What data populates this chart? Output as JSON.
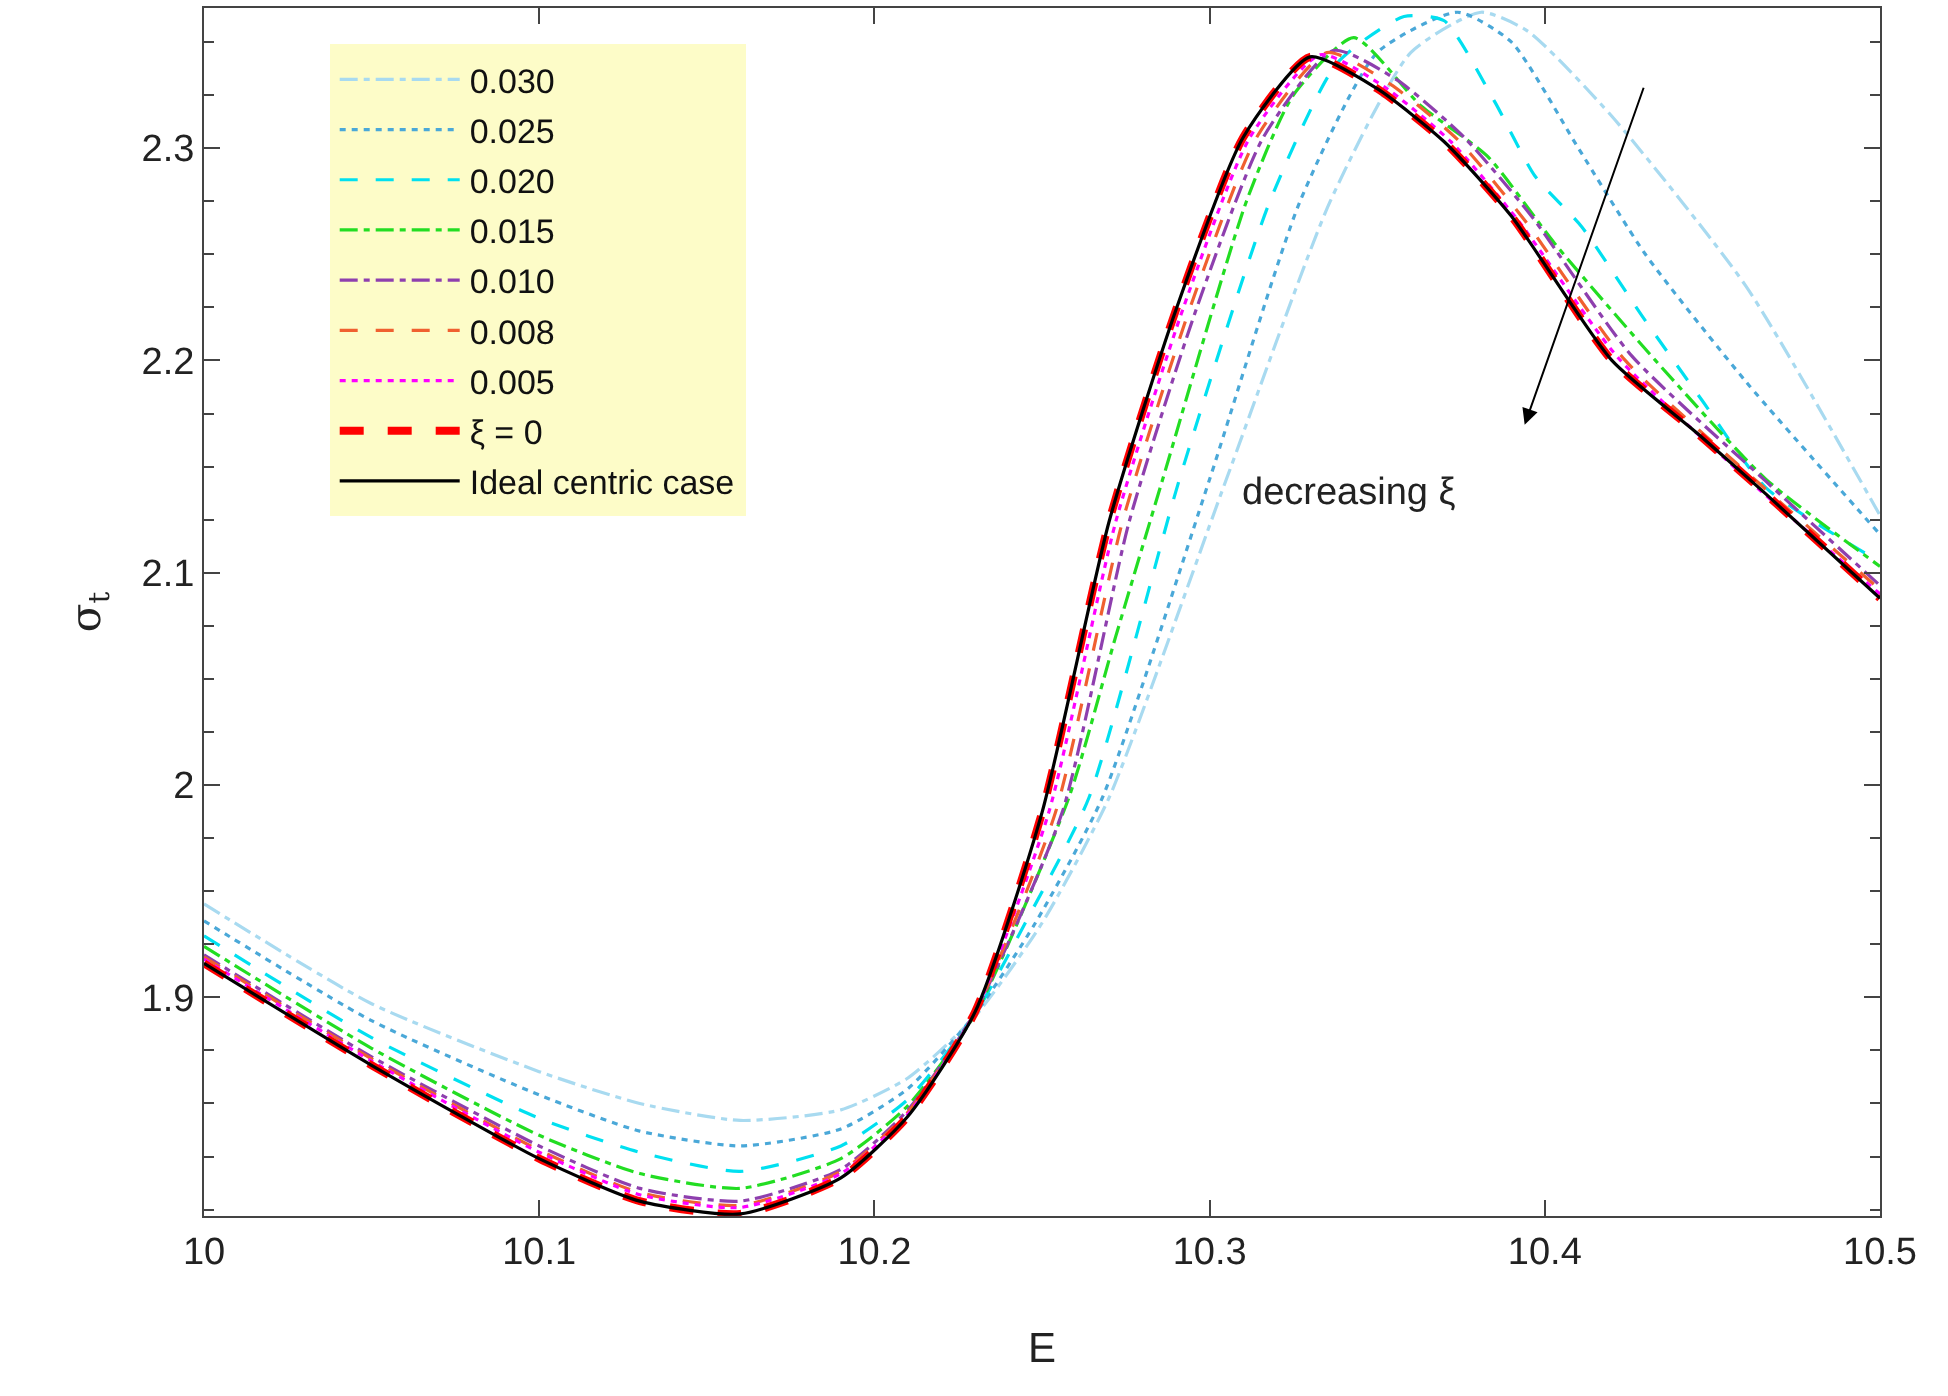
{
  "chart_data": {
    "type": "line",
    "xlabel": "E",
    "ylabel": "σ$_{t}$",
    "xlim": [
      10,
      10.5
    ],
    "xticks": [
      10,
      10.1,
      10.2,
      10.3,
      10.4,
      10.5
    ],
    "ylim": [
      1.797,
      2.366
    ],
    "yticks": [
      1.9,
      2,
      2.1,
      2.2,
      2.3
    ],
    "grid": false,
    "legend": "top left",
    "marker": "none",
    "annotations": [
      "decreasing ξ"
    ],
    "series": [
      {
        "name": "0.030",
        "color": "#a8daf0",
        "line_style": "dashdot",
        "x": [
          10,
          10.05,
          10.1,
          10.13,
          10.16,
          10.19,
          10.21,
          10.23,
          10.25,
          10.27,
          10.305,
          10.336,
          10.36,
          10.381,
          10.395,
          10.42,
          10.46,
          10.5
        ],
        "values": [
          1.944,
          1.897,
          1.865,
          1.85,
          1.842,
          1.847,
          1.862,
          1.891,
          1.935,
          1.994,
          2.144,
          2.275,
          2.345,
          2.364,
          2.355,
          2.315,
          2.235,
          2.127
        ]
      },
      {
        "name": "0.025",
        "color": "#4aa8d8",
        "line_style": "dotted",
        "x": [
          10,
          10.05,
          10.1,
          10.13,
          10.16,
          10.19,
          10.21,
          10.23,
          10.248,
          10.268,
          10.3,
          10.327,
          10.35,
          10.374,
          10.39,
          10.41,
          10.43,
          10.46,
          10.5
        ],
        "values": [
          1.936,
          1.889,
          1.854,
          1.837,
          1.83,
          1.838,
          1.857,
          1.892,
          1.935,
          1.994,
          2.144,
          2.275,
          2.345,
          2.364,
          2.35,
          2.3,
          2.25,
          2.19,
          2.118
        ]
      },
      {
        "name": "0.020",
        "color": "#00e0f0",
        "line_style": "dashed",
        "x": [
          10,
          10.05,
          10.1,
          10.13,
          10.16,
          10.19,
          10.21,
          10.23,
          10.245,
          10.264,
          10.291,
          10.318,
          10.338,
          10.358,
          10.37,
          10.385,
          10.397,
          10.411,
          10.429,
          10.447,
          10.466,
          10.5
        ],
        "values": [
          1.929,
          1.881,
          1.843,
          1.827,
          1.818,
          1.83,
          1.852,
          1.892,
          1.935,
          1.994,
          2.144,
          2.275,
          2.34,
          2.362,
          2.36,
          2.322,
          2.287,
          2.263,
          2.221,
          2.181,
          2.14,
          2.105
        ]
      },
      {
        "name": "0.015",
        "color": "#22dd22",
        "line_style": "dashdot",
        "x": [
          10,
          10.05,
          10.1,
          10.13,
          10.16,
          10.19,
          10.21,
          10.23,
          10.258,
          10.272,
          10.286,
          10.311,
          10.325,
          10.343,
          10.363,
          10.383,
          10.403,
          10.433,
          10.466,
          10.5
        ],
        "values": [
          1.924,
          1.876,
          1.835,
          1.817,
          1.81,
          1.824,
          1.849,
          1.892,
          1.994,
          2.07,
          2.144,
          2.275,
          2.325,
          2.352,
          2.32,
          2.296,
          2.255,
          2.2,
          2.144,
          2.103
        ]
      },
      {
        "name": "0.010",
        "color": "#8e3fae",
        "line_style": "dashdot",
        "x": [
          10,
          10.05,
          10.1,
          10.13,
          10.16,
          10.19,
          10.21,
          10.23,
          10.256,
          10.276,
          10.296,
          10.316,
          10.337,
          10.356,
          10.376,
          10.396,
          10.426,
          10.466,
          10.5
        ],
        "values": [
          1.92,
          1.872,
          1.83,
          1.81,
          1.804,
          1.819,
          1.847,
          1.893,
          1.987,
          2.124,
          2.224,
          2.305,
          2.346,
          2.332,
          2.305,
          2.268,
          2.202,
          2.143,
          2.094
        ]
      },
      {
        "name": "0.008",
        "color": "#f06030",
        "line_style": "dashed",
        "x": [
          10,
          10.05,
          10.1,
          10.13,
          10.16,
          10.19,
          10.21,
          10.23,
          10.254,
          10.274,
          10.294,
          10.314,
          10.335,
          10.354,
          10.374,
          10.394,
          10.424,
          10.464,
          10.5
        ],
        "values": [
          1.919,
          1.871,
          1.828,
          1.808,
          1.802,
          1.818,
          1.846,
          1.893,
          1.987,
          2.124,
          2.224,
          2.305,
          2.345,
          2.33,
          2.304,
          2.266,
          2.2,
          2.142,
          2.092
        ]
      },
      {
        "name": "0.005",
        "color": "#ff00ff",
        "line_style": "dotted",
        "x": [
          10,
          10.05,
          10.1,
          10.13,
          10.16,
          10.19,
          10.21,
          10.23,
          10.252,
          10.272,
          10.292,
          10.312,
          10.333,
          10.352,
          10.372,
          10.392,
          10.422,
          10.462,
          10.5
        ],
        "values": [
          1.918,
          1.87,
          1.827,
          1.807,
          1.801,
          1.817,
          1.845,
          1.893,
          1.987,
          2.124,
          2.224,
          2.305,
          2.344,
          2.329,
          2.303,
          2.266,
          2.201,
          2.142,
          2.09
        ]
      },
      {
        "name": "ξ = 0",
        "color": "#ff0000",
        "line_style": "dashed",
        "x": [
          10,
          10.05,
          10.1,
          10.13,
          10.16,
          10.19,
          10.21,
          10.23,
          10.25,
          10.27,
          10.29,
          10.31,
          10.33,
          10.35,
          10.37,
          10.39,
          10.42,
          10.446,
          10.466,
          10.5
        ],
        "values": [
          1.916,
          1.868,
          1.824,
          1.804,
          1.798,
          1.815,
          1.844,
          1.893,
          1.987,
          2.124,
          2.224,
          2.305,
          2.343,
          2.328,
          2.303,
          2.268,
          2.2,
          2.165,
          2.137,
          2.088
        ]
      },
      {
        "name": "Ideal centric case",
        "color": "#000000",
        "line_style": "solid",
        "x": [
          10,
          10.05,
          10.1,
          10.13,
          10.16,
          10.19,
          10.21,
          10.23,
          10.25,
          10.27,
          10.29,
          10.31,
          10.33,
          10.35,
          10.37,
          10.39,
          10.42,
          10.446,
          10.466,
          10.5
        ],
        "values": [
          1.916,
          1.868,
          1.824,
          1.804,
          1.798,
          1.815,
          1.844,
          1.893,
          1.987,
          2.124,
          2.224,
          2.305,
          2.343,
          2.328,
          2.303,
          2.268,
          2.2,
          2.165,
          2.137,
          2.088
        ]
      }
    ]
  }
}
